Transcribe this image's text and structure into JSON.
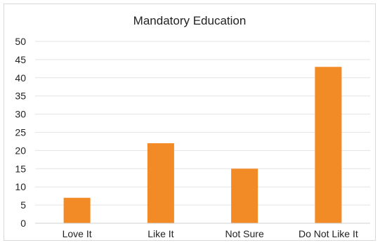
{
  "chart_data": {
    "type": "bar",
    "title": "Mandatory Education",
    "xlabel": "",
    "ylabel": "",
    "categories": [
      "Love It",
      "Like It",
      "Not Sure",
      "Do Not Like It"
    ],
    "values": [
      7,
      22,
      15,
      43
    ],
    "ylim": [
      0,
      50
    ],
    "yticks": [
      "0",
      "5",
      "10",
      "15",
      "20",
      "25",
      "30",
      "35",
      "40",
      "45",
      "50"
    ],
    "grid": true,
    "legend": "none",
    "bar_color": "#f28a25",
    "grid_color": "#e3e3e3"
  }
}
